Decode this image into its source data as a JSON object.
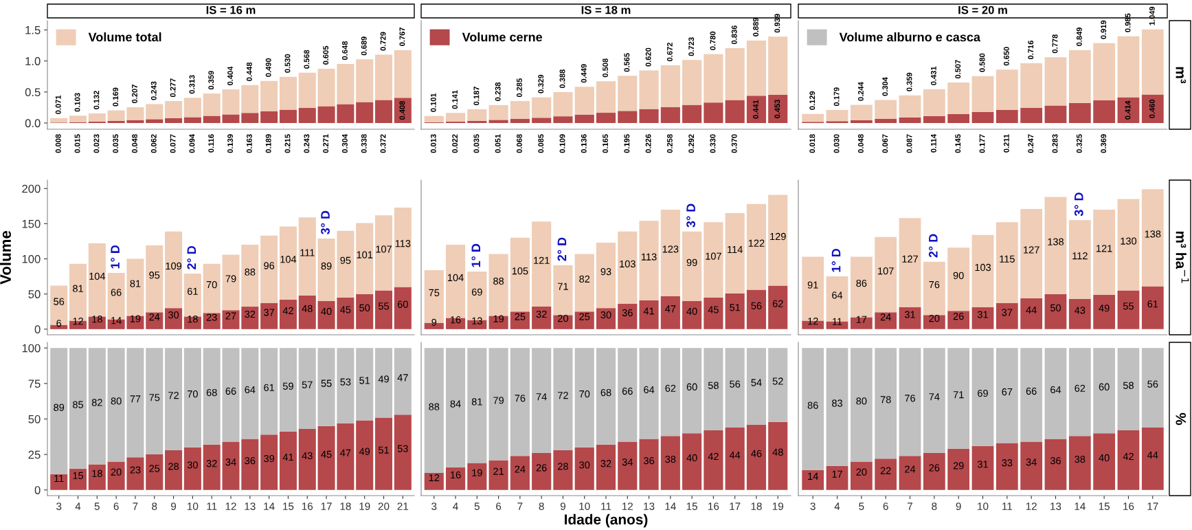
{
  "chart_data": [
    {
      "type": "bar",
      "title": "IS = 16 m",
      "stacked": true,
      "legend": "top left",
      "tick_labels": "y",
      "ylim": [
        -0.1,
        1.65
      ],
      "yticks": [
        {
          "value": 0,
          "label": "0.0"
        },
        {
          "value": 0.5,
          "label": "0.5"
        },
        {
          "value": 1,
          "label": "1.0"
        },
        {
          "value": 1.5,
          "label": "1.5"
        }
      ],
      "categories": [
        "3",
        "4",
        "5",
        "6",
        "7",
        "8",
        "9",
        "10",
        "11",
        "12",
        "13",
        "14",
        "15",
        "16",
        "17",
        "18",
        "19",
        "20",
        "21"
      ],
      "series": [
        {
          "color": "#b5484b",
          "values": [
            0.008,
            0.015,
            0.023,
            0.035,
            0.048,
            0.062,
            0.077,
            0.094,
            0.116,
            0.139,
            0.163,
            0.189,
            0.215,
            0.243,
            0.271,
            0.304,
            0.338,
            0.372,
            0.408
          ],
          "value_labels": [
            "0.008",
            "0.015",
            "0.023",
            "0.035",
            "0.048",
            "0.062",
            "0.077",
            "0.094",
            "0.116",
            "0.139",
            "0.163",
            "0.189",
            "0.215",
            "0.243",
            "0.271",
            "0.304",
            "0.338",
            "0.372",
            "0.408"
          ]
        },
        {
          "name": "Volume total",
          "color": "#efcdb6",
          "values": [
            0.071,
            0.103,
            0.132,
            0.169,
            0.207,
            0.243,
            0.277,
            0.313,
            0.359,
            0.404,
            0.448,
            0.49,
            0.53,
            0.568,
            0.605,
            0.648,
            0.689,
            0.729,
            0.767
          ],
          "value_labels": [
            "0.071",
            "0.103",
            "0.132",
            "0.169",
            "0.207",
            "0.243",
            "0.277",
            "0.313",
            "0.359",
            "0.404",
            "0.448",
            "0.490",
            "0.530",
            "0.568",
            "0.605",
            "0.648",
            "0.689",
            "0.729",
            "0.767"
          ]
        }
      ]
    },
    {
      "type": "bar",
      "title": "IS = 18 m",
      "stacked": true,
      "legend": "top left",
      "tick_labels": false,
      "ylim": [
        -0.1,
        1.65
      ],
      "categories": [
        "3",
        "4",
        "5",
        "6",
        "7",
        "8",
        "9",
        "10",
        "11",
        "12",
        "13",
        "14",
        "15",
        "16",
        "17",
        "18",
        "19"
      ],
      "series": [
        {
          "name": "Volume cerne",
          "color": "#b5484b",
          "values": [
            0.013,
            0.022,
            0.035,
            0.051,
            0.068,
            0.085,
            0.109,
            0.136,
            0.165,
            0.195,
            0.226,
            0.258,
            0.292,
            0.33,
            0.37,
            0.441,
            0.453
          ],
          "value_labels": [
            "0.013",
            "0.022",
            "0.035",
            "0.051",
            "0.068",
            "0.085",
            "0.109",
            "0.136",
            "0.165",
            "0.195",
            "0.226",
            "0.258",
            "0.292",
            "0.330",
            "0.370",
            "0.441",
            "0.453"
          ]
        },
        {
          "color": "#efcdb6",
          "values": [
            0.101,
            0.141,
            0.187,
            0.238,
            0.285,
            0.329,
            0.388,
            0.449,
            0.508,
            0.565,
            0.62,
            0.672,
            0.723,
            0.78,
            0.836,
            0.889,
            0.939
          ],
          "value_labels": [
            "0.101",
            "0.141",
            "0.187",
            "0.238",
            "0.285",
            "0.329",
            "0.388",
            "0.449",
            "0.508",
            "0.565",
            "0.620",
            "0.672",
            "0.723",
            "0.780",
            "0.836",
            "0.889",
            "0.939"
          ]
        }
      ]
    },
    {
      "type": "bar",
      "title": "IS = 20 m",
      "y2label": "m³",
      "stacked": true,
      "legend": "top left",
      "tick_labels": false,
      "ylim": [
        -0.1,
        1.65
      ],
      "categories": [
        "3",
        "4",
        "5",
        "6",
        "7",
        "8",
        "9",
        "10",
        "11",
        "12",
        "13",
        "14",
        "15",
        "16",
        "17"
      ],
      "series": [
        {
          "color": "#b5484b",
          "values": [
            0.018,
            0.03,
            0.048,
            0.067,
            0.087,
            0.114,
            0.145,
            0.177,
            0.211,
            0.247,
            0.283,
            0.325,
            0.369,
            0.414,
            0.46
          ],
          "value_labels": [
            "0.018",
            "0.030",
            "0.048",
            "0.067",
            "0.087",
            "0.114",
            "0.145",
            "0.177",
            "0.211",
            "0.247",
            "0.283",
            "0.325",
            "0.369",
            "0.414",
            "0.460"
          ]
        },
        {
          "color": "#efcdb6",
          "values": [
            0.129,
            0.179,
            0.244,
            0.304,
            0.359,
            0.431,
            0.507,
            0.58,
            0.65,
            0.716,
            0.778,
            0.849,
            0.919,
            0.985,
            1.049
          ],
          "value_labels": [
            "0.129",
            "0.179",
            "0.244",
            "0.304",
            "0.359",
            "0.431",
            "0.507",
            "0.580",
            "0.650",
            "0.716",
            "0.778",
            "0.849",
            "0.919",
            "0.985",
            "1.049"
          ]
        },
        {
          "name": "Volume alburno e casca",
          "color": "#c0c0c0",
          "values": [
            null,
            null,
            null,
            null,
            null,
            null,
            null,
            null,
            null,
            null,
            null,
            null,
            null,
            null,
            null
          ]
        }
      ]
    },
    {
      "type": "bar",
      "ylabel": "Volume",
      "stacked": true,
      "tick_labels": "y",
      "ylim": [
        -8,
        212
      ],
      "yticks": [
        0,
        50,
        100,
        150,
        200
      ],
      "categories": [
        "3",
        "4",
        "5",
        "6",
        "7",
        "8",
        "9",
        "10",
        "11",
        "12",
        "13",
        "14",
        "15",
        "16",
        "17",
        "18",
        "19",
        "20",
        "21"
      ],
      "series": [
        {
          "color": "#b5484b",
          "values": [
            6,
            12,
            18,
            14,
            19,
            24,
            30,
            18,
            23,
            27,
            32,
            37,
            42,
            48,
            40,
            45,
            50,
            55,
            60
          ],
          "value_labels": [
            "6",
            "12",
            "18",
            "14",
            "19",
            "24",
            "30",
            "18",
            "23",
            "27",
            "32",
            "37",
            "42",
            "48",
            "40",
            "45",
            "50",
            "55",
            "60"
          ]
        },
        {
          "color": "#efcdb6",
          "values": [
            56,
            81,
            104,
            66,
            81,
            95,
            109,
            61,
            70,
            79,
            88,
            96,
            104,
            111,
            89,
            95,
            101,
            107,
            113
          ],
          "value_labels": [
            "56",
            "81",
            "104",
            "66",
            "81",
            "95",
            "109",
            "61",
            "70",
            "79",
            "88",
            "96",
            "104",
            "111",
            "89",
            "95",
            "101",
            "107",
            "113"
          ]
        }
      ],
      "annotations": [
        {
          "text": "1° D",
          "x": "6",
          "y": 80
        },
        {
          "text": "2° D",
          "x": "10",
          "y": 79
        },
        {
          "text": "3° D",
          "x": "17",
          "y": 129
        }
      ]
    },
    {
      "type": "bar",
      "stacked": true,
      "tick_labels": false,
      "ylim": [
        -8,
        212
      ],
      "categories": [
        "3",
        "4",
        "5",
        "6",
        "7",
        "8",
        "9",
        "10",
        "11",
        "12",
        "13",
        "14",
        "15",
        "16",
        "17",
        "18",
        "19"
      ],
      "series": [
        {
          "color": "#b5484b",
          "values": [
            9,
            16,
            13,
            19,
            25,
            32,
            20,
            25,
            30,
            36,
            41,
            47,
            40,
            45,
            51,
            56,
            62
          ],
          "value_labels": [
            "9",
            "16",
            "13",
            "19",
            "25",
            "32",
            "20",
            "25",
            "30",
            "36",
            "41",
            "47",
            "40",
            "45",
            "51",
            "56",
            "62"
          ]
        },
        {
          "color": "#efcdb6",
          "values": [
            75,
            104,
            69,
            88,
            105,
            121,
            71,
            82,
            93,
            103,
            113,
            123,
            99,
            107,
            114,
            122,
            129
          ],
          "value_labels": [
            "75",
            "104",
            "69",
            "88",
            "105",
            "121",
            "71",
            "82",
            "93",
            "103",
            "113",
            "123",
            "99",
            "107",
            "114",
            "122",
            "129"
          ]
        }
      ],
      "annotations": [
        {
          "text": "1° D",
          "x": "5",
          "y": 82
        },
        {
          "text": "2° D",
          "x": "9",
          "y": 91
        },
        {
          "text": "3° D",
          "x": "15",
          "y": 139
        }
      ]
    },
    {
      "type": "bar",
      "y2label": "m³ ha$^{−1}$",
      "stacked": true,
      "tick_labels": false,
      "ylim": [
        -8,
        212
      ],
      "categories": [
        "3",
        "4",
        "5",
        "6",
        "7",
        "8",
        "9",
        "10",
        "11",
        "12",
        "13",
        "14",
        "15",
        "16",
        "17"
      ],
      "series": [
        {
          "color": "#b5484b",
          "values": [
            12,
            11,
            17,
            24,
            31,
            20,
            26,
            31,
            37,
            44,
            50,
            43,
            49,
            55,
            61
          ],
          "value_labels": [
            "12",
            "11",
            "17",
            "24",
            "31",
            "20",
            "26",
            "31",
            "37",
            "44",
            "50",
            "43",
            "49",
            "55",
            "61"
          ]
        },
        {
          "color": "#efcdb6",
          "values": [
            91,
            64,
            86,
            107,
            127,
            76,
            90,
            103,
            115,
            127,
            138,
            112,
            121,
            130,
            138
          ],
          "value_labels": [
            "91",
            "64",
            "86",
            "107",
            "127",
            "76",
            "90",
            "103",
            "115",
            "127",
            "138",
            "112",
            "121",
            "130",
            "138"
          ]
        }
      ],
      "annotations": [
        {
          "text": "1° D",
          "x": "4",
          "y": 75
        },
        {
          "text": "2° D",
          "x": "8",
          "y": 96
        },
        {
          "text": "3° D",
          "x": "14",
          "y": 155
        }
      ]
    },
    {
      "type": "bar",
      "stacked": true,
      "ylim": [
        -4,
        104
      ],
      "yticks": [
        0,
        25,
        50,
        75,
        100
      ],
      "categories": [
        "3",
        "4",
        "5",
        "6",
        "7",
        "8",
        "9",
        "10",
        "11",
        "12",
        "13",
        "14",
        "15",
        "16",
        "17",
        "18",
        "19",
        "20",
        "21"
      ],
      "series": [
        {
          "color": "#b5484b",
          "values": [
            11,
            15,
            18,
            20,
            23,
            25,
            28,
            30,
            32,
            34,
            36,
            39,
            41,
            43,
            45,
            47,
            49,
            51,
            53
          ],
          "value_labels": [
            "11",
            "15",
            "18",
            "20",
            "23",
            "25",
            "28",
            "30",
            "32",
            "34",
            "36",
            "39",
            "41",
            "43",
            "45",
            "47",
            "49",
            "51",
            "53"
          ]
        },
        {
          "color": "#c0c0c0",
          "values": [
            89,
            85,
            82,
            80,
            77,
            75,
            72,
            70,
            68,
            66,
            64,
            61,
            59,
            57,
            55,
            53,
            51,
            49,
            47
          ],
          "value_labels": [
            "89",
            "85",
            "82",
            "80",
            "77",
            "75",
            "72",
            "70",
            "68",
            "66",
            "64",
            "61",
            "59",
            "57",
            "55",
            "53",
            "51",
            "49",
            "47"
          ]
        }
      ]
    },
    {
      "type": "bar",
      "xlabel": "Idade (anos)",
      "stacked": true,
      "tick_labels": "x",
      "ylim": [
        -4,
        104
      ],
      "categories": [
        "3",
        "4",
        "5",
        "6",
        "7",
        "8",
        "9",
        "10",
        "11",
        "12",
        "13",
        "14",
        "15",
        "16",
        "17",
        "18",
        "19"
      ],
      "series": [
        {
          "color": "#b5484b",
          "values": [
            12,
            16,
            19,
            21,
            24,
            26,
            28,
            30,
            32,
            34,
            36,
            38,
            40,
            42,
            44,
            46,
            48
          ],
          "value_labels": [
            "12",
            "16",
            "19",
            "21",
            "24",
            "26",
            "28",
            "30",
            "32",
            "34",
            "36",
            "38",
            "40",
            "42",
            "44",
            "46",
            "48"
          ]
        },
        {
          "color": "#c0c0c0",
          "values": [
            88,
            84,
            81,
            79,
            76,
            74,
            72,
            70,
            68,
            66,
            64,
            62,
            60,
            58,
            56,
            54,
            52
          ],
          "value_labels": [
            "88",
            "84",
            "81",
            "79",
            "76",
            "74",
            "72",
            "70",
            "68",
            "66",
            "64",
            "62",
            "60",
            "58",
            "56",
            "54",
            "52"
          ]
        }
      ]
    },
    {
      "type": "bar",
      "y2label": "%",
      "stacked": true,
      "tick_labels": "x",
      "ylim": [
        -4,
        104
      ],
      "categories": [
        "3",
        "4",
        "5",
        "6",
        "7",
        "8",
        "9",
        "10",
        "11",
        "12",
        "13",
        "14",
        "15",
        "16",
        "17"
      ],
      "series": [
        {
          "color": "#b5484b",
          "values": [
            14,
            17,
            20,
            22,
            24,
            26,
            29,
            31,
            33,
            34,
            36,
            38,
            40,
            42,
            44
          ],
          "value_labels": [
            "14",
            "17",
            "20",
            "22",
            "24",
            "26",
            "29",
            "31",
            "33",
            "34",
            "36",
            "38",
            "40",
            "42",
            "44"
          ]
        },
        {
          "color": "#c0c0c0",
          "values": [
            86,
            83,
            80,
            78,
            76,
            74,
            71,
            69,
            67,
            66,
            64,
            62,
            60,
            58,
            56
          ],
          "value_labels": [
            "86",
            "83",
            "80",
            "78",
            "76",
            "74",
            "71",
            "69",
            "67",
            "66",
            "64",
            "62",
            "60",
            "58",
            "56"
          ]
        }
      ]
    }
  ]
}
